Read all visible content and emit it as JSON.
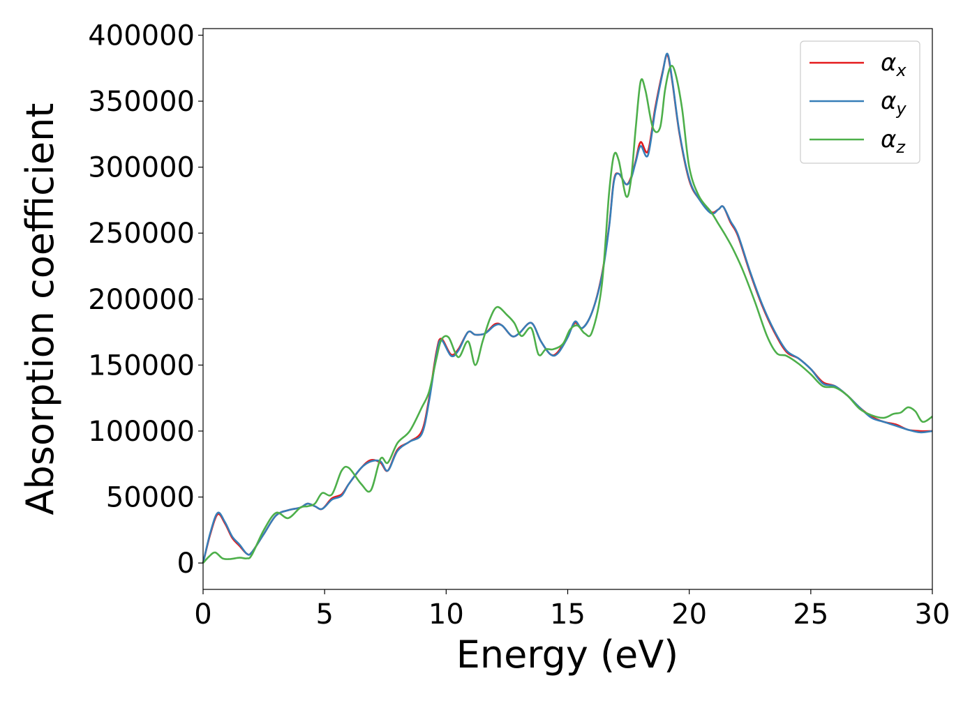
{
  "chart_data": {
    "type": "line",
    "xlabel": "Energy (eV)",
    "ylabel": "Absorption coefficient",
    "xlim": [
      0,
      30
    ],
    "ylim": [
      -20000,
      405000
    ],
    "xticks": [
      0,
      5,
      10,
      15,
      20,
      25,
      30
    ],
    "xtick_labels": [
      "0",
      "5",
      "10",
      "15",
      "20",
      "25",
      "30"
    ],
    "yticks": [
      0,
      50000,
      100000,
      150000,
      200000,
      250000,
      300000,
      350000,
      400000
    ],
    "ytick_labels": [
      "0",
      "50000",
      "100000",
      "150000",
      "200000",
      "250000",
      "300000",
      "350000",
      "400000"
    ],
    "grid": false,
    "legend": {
      "position": "top-right"
    },
    "series": [
      {
        "name": "α",
        "subscript": "x",
        "color": "#e41a1c",
        "x": [
          0,
          0.3,
          0.6,
          0.9,
          1.2,
          1.5,
          1.8,
          2.0,
          2.5,
          3.0,
          3.5,
          4.0,
          4.3,
          4.6,
          4.9,
          5.3,
          5.7,
          6.0,
          6.5,
          6.9,
          7.3,
          7.6,
          8.0,
          8.5,
          9.0,
          9.3,
          9.6,
          9.8,
          10.2,
          10.5,
          10.9,
          11.2,
          11.6,
          12.0,
          12.3,
          12.7,
          13.0,
          13.5,
          13.9,
          14.3,
          14.6,
          15.0,
          15.3,
          15.6,
          16.0,
          16.4,
          16.7,
          16.9,
          17.1,
          17.4,
          17.6,
          17.8,
          18.0,
          18.3,
          18.6,
          18.9,
          19.1,
          19.3,
          19.6,
          20.0,
          20.4,
          20.9,
          21.2,
          21.4,
          21.7,
          22.0,
          22.5,
          23.0,
          23.5,
          24.0,
          24.5,
          25.0,
          25.5,
          26.0,
          26.5,
          27.0,
          27.5,
          28.0,
          28.5,
          29.0,
          29.5,
          30.0
        ],
        "y": [
          0,
          22000,
          37000,
          30000,
          19000,
          13000,
          7000,
          8000,
          22000,
          36000,
          40000,
          42000,
          45000,
          43000,
          41000,
          49000,
          52000,
          60000,
          72000,
          78000,
          76000,
          70000,
          86000,
          92000,
          100000,
          125000,
          160000,
          170000,
          158000,
          162000,
          175000,
          173000,
          174000,
          181000,
          180000,
          172000,
          174000,
          182000,
          168000,
          158000,
          160000,
          172000,
          182000,
          178000,
          190000,
          218000,
          255000,
          290000,
          295000,
          287000,
          292000,
          305000,
          319000,
          312000,
          345000,
          372000,
          385000,
          365000,
          325000,
          290000,
          276000,
          266000,
          268000,
          270000,
          258000,
          248000,
          220000,
          195000,
          175000,
          160000,
          155000,
          147000,
          137000,
          134000,
          127000,
          118000,
          111000,
          107000,
          105000,
          101000,
          100000,
          100000
        ]
      },
      {
        "name": "α",
        "subscript": "y",
        "color": "#377eb8",
        "x": [
          0,
          0.3,
          0.6,
          0.9,
          1.2,
          1.5,
          1.8,
          2.0,
          2.5,
          3.0,
          3.5,
          4.0,
          4.3,
          4.6,
          4.9,
          5.3,
          5.7,
          6.0,
          6.5,
          6.9,
          7.3,
          7.6,
          8.0,
          8.5,
          9.0,
          9.3,
          9.6,
          9.8,
          10.2,
          10.5,
          10.9,
          11.2,
          11.6,
          12.0,
          12.3,
          12.7,
          13.0,
          13.5,
          13.9,
          14.3,
          14.6,
          15.0,
          15.3,
          15.6,
          16.0,
          16.4,
          16.7,
          16.9,
          17.1,
          17.4,
          17.6,
          17.8,
          18.0,
          18.3,
          18.6,
          18.9,
          19.1,
          19.3,
          19.6,
          20.0,
          20.4,
          20.9,
          21.2,
          21.4,
          21.7,
          22.0,
          22.5,
          23.0,
          23.5,
          24.0,
          24.5,
          25.0,
          25.5,
          26.0,
          26.5,
          27.0,
          27.5,
          28.0,
          28.5,
          29.0,
          29.5,
          30.0
        ],
        "y": [
          0,
          23000,
          38000,
          31000,
          20000,
          14000,
          7000,
          8000,
          22000,
          36000,
          40000,
          42000,
          45000,
          43000,
          41000,
          48000,
          51000,
          60000,
          72000,
          77000,
          77000,
          70000,
          85000,
          92000,
          98000,
          123000,
          158000,
          169000,
          157000,
          161000,
          175000,
          173000,
          174000,
          180000,
          180000,
          172000,
          174000,
          182000,
          168000,
          158000,
          159000,
          171000,
          183000,
          178000,
          190000,
          217000,
          254000,
          289000,
          295000,
          287000,
          291000,
          304000,
          316000,
          309000,
          343000,
          371000,
          386000,
          366000,
          326000,
          291000,
          276000,
          265000,
          268000,
          270000,
          259000,
          249000,
          221000,
          196000,
          176000,
          161000,
          155000,
          147000,
          136000,
          134000,
          127000,
          118000,
          110000,
          107000,
          104000,
          101000,
          99000,
          100000
        ]
      },
      {
        "name": "α",
        "subscript": "z",
        "color": "#4daf4a",
        "x": [
          0,
          0.25,
          0.5,
          0.8,
          1.1,
          1.5,
          1.8,
          2.0,
          2.5,
          3.0,
          3.5,
          4.0,
          4.3,
          4.6,
          4.9,
          5.3,
          5.7,
          6.0,
          6.5,
          6.9,
          7.3,
          7.6,
          8.0,
          8.5,
          9.0,
          9.3,
          9.6,
          9.8,
          10.1,
          10.5,
          10.9,
          11.2,
          11.5,
          11.8,
          12.1,
          12.5,
          12.8,
          13.1,
          13.5,
          13.8,
          14.1,
          14.4,
          14.8,
          15.1,
          15.4,
          15.7,
          16.0,
          16.4,
          16.7,
          16.9,
          17.1,
          17.4,
          17.6,
          17.8,
          18.0,
          18.2,
          18.5,
          18.8,
          19.0,
          19.2,
          19.4,
          19.7,
          20.0,
          20.4,
          20.9,
          21.2,
          21.5,
          21.8,
          22.2,
          22.7,
          23.2,
          23.6,
          24.0,
          24.5,
          25.0,
          25.5,
          26.0,
          26.5,
          27.0,
          27.5,
          28.0,
          28.4,
          28.7,
          29.0,
          29.3,
          29.6,
          30.0
        ],
        "y": [
          0,
          5000,
          8000,
          3500,
          3000,
          4000,
          3500,
          6000,
          25000,
          38000,
          34000,
          42000,
          43000,
          45000,
          53000,
          52000,
          70000,
          72000,
          60000,
          55000,
          79000,
          76000,
          91000,
          100000,
          118000,
          130000,
          155000,
          169000,
          171000,
          156000,
          168000,
          150000,
          168000,
          185000,
          194000,
          188000,
          182000,
          172000,
          178000,
          158000,
          162000,
          162000,
          166000,
          177000,
          180000,
          174000,
          175000,
          210000,
          280000,
          309000,
          305000,
          278000,
          290000,
          330000,
          365000,
          358000,
          330000,
          330000,
          358000,
          375000,
          373000,
          345000,
          300000,
          278000,
          266000,
          257000,
          248000,
          238000,
          222000,
          198000,
          172000,
          159000,
          157000,
          151000,
          143000,
          134000,
          133000,
          127000,
          117000,
          112000,
          110000,
          113000,
          114000,
          118000,
          115000,
          107000,
          111000
        ]
      }
    ]
  }
}
